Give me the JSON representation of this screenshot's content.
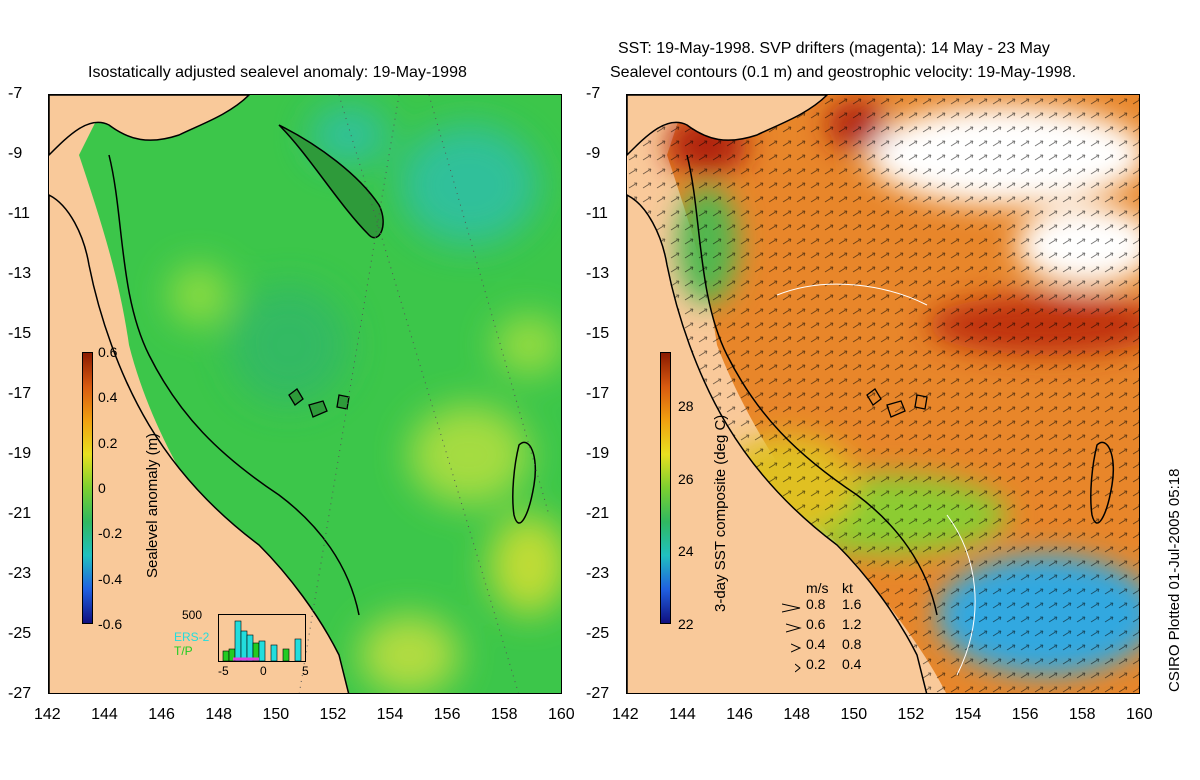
{
  "left_panel": {
    "title": "Isostatically adjusted sealevel anomaly: 19-May-1998",
    "colorbar": {
      "label": "Sealevel anomaly (m)",
      "ticks": [
        "0.6",
        "0.4",
        "0.2",
        "0",
        "-0.2",
        "-0.4",
        "-0.6"
      ],
      "range": [
        -0.6,
        0.6
      ]
    },
    "inset": {
      "ymax_label": "500",
      "series_labels": [
        "ERS-2",
        "T/P"
      ],
      "x_ticks": [
        "-5",
        "0",
        "5"
      ],
      "colors": {
        "ers2": "#22dddd",
        "tp": "#22cc22"
      }
    }
  },
  "right_panel": {
    "title_line1": "SST: 19-May-1998. SVP drifters (magenta): 14 May - 23 May",
    "title_line2": "Sealevel contours (0.1 m) and geostrophic velocity: 19-May-1998.",
    "colorbar": {
      "label": "3-day SST composite (deg C)",
      "ticks": [
        "28",
        "26",
        "24",
        "22"
      ],
      "range": [
        22,
        29.5
      ]
    },
    "velocity_legend": {
      "header_ms": "m/s",
      "header_kt": "kt",
      "rows": [
        {
          "ms": "0.8",
          "kt": "1.6"
        },
        {
          "ms": "0.6",
          "kt": "1.2"
        },
        {
          "ms": "0.4",
          "kt": "0.8"
        },
        {
          "ms": "0.2",
          "kt": "0.4"
        }
      ]
    }
  },
  "axes": {
    "lat_ticks": [
      "-7",
      "-9",
      "-11",
      "-13",
      "-15",
      "-17",
      "-19",
      "-21",
      "-23",
      "-25",
      "-27"
    ],
    "lon_ticks": [
      "142",
      "144",
      "146",
      "148",
      "150",
      "152",
      "154",
      "156",
      "158",
      "160"
    ],
    "lat_range": [
      -27,
      -7
    ],
    "lon_range": [
      142,
      160
    ]
  },
  "credit": "CSIRO Plotted 01-Jul-2005 05:18",
  "colors": {
    "land": "#f9c99a",
    "sla_base": "#33cc44",
    "sst_warm": "#e07020",
    "sst_cool": "#30a8e0"
  }
}
